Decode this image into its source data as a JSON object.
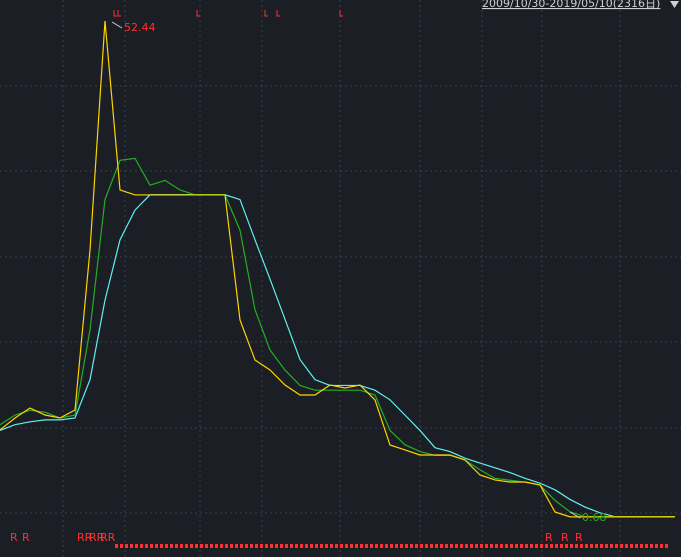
{
  "chart_data": {
    "type": "line",
    "title": "2009/10/30-2019/05/10(2316日)",
    "categories": [
      null,
      null,
      null,
      null,
      null,
      null,
      null,
      null,
      null,
      null,
      null,
      null,
      null,
      null,
      null,
      null,
      null,
      null,
      null,
      null,
      null,
      null,
      null,
      null,
      null,
      null,
      null,
      null,
      null,
      null,
      null,
      null,
      null,
      null,
      null,
      null,
      null,
      null,
      null,
      null,
      null,
      null,
      null,
      null,
      null,
      null
    ],
    "ylim": [
      -3.51,
      54.63
    ],
    "series": [
      {
        "color": "#5ef0f0",
        "values": [
          9.7,
          10.3,
          10.6,
          10.8,
          10.8,
          11.0,
          15.0,
          23.3,
          29.6,
          32.7,
          34.3,
          34.3,
          34.3,
          34.3,
          34.3,
          34.3,
          33.8,
          29.6,
          25.5,
          21.3,
          17.1,
          15.0,
          14.4,
          14.4,
          14.4,
          13.9,
          12.9,
          11.3,
          9.7,
          7.9,
          7.5,
          6.8,
          6.3,
          5.8,
          5.3,
          4.7,
          4.2,
          3.5,
          2.5,
          1.7,
          1.1,
          0.7,
          0.7,
          0.7,
          0.7,
          0.7
        ]
      },
      {
        "color": "#22b022",
        "values": [
          10.3,
          11.3,
          11.8,
          11.6,
          11.0,
          11.3,
          20.2,
          33.8,
          37.9,
          38.1,
          35.3,
          35.8,
          34.8,
          34.3,
          34.3,
          34.3,
          30.6,
          22.3,
          18.1,
          16.0,
          14.4,
          13.9,
          13.9,
          13.9,
          13.9,
          13.4,
          9.7,
          8.2,
          7.5,
          7.1,
          7.1,
          6.6,
          5.6,
          4.7,
          4.5,
          4.3,
          4.0,
          2.4,
          1.2,
          0.7,
          0.7,
          0.7,
          0.7,
          0.7,
          0.7,
          0.7
        ]
      },
      {
        "color": "#ffd400",
        "values": [
          9.75,
          11.0,
          12.04,
          11.31,
          11.0,
          11.83,
          28.54,
          52.44,
          34.8,
          34.28,
          34.28,
          34.28,
          34.28,
          34.28,
          34.28,
          34.28,
          21.23,
          17.05,
          16.01,
          14.44,
          13.4,
          13.4,
          14.44,
          14.13,
          14.44,
          12.88,
          8.18,
          7.66,
          7.14,
          7.14,
          7.14,
          6.62,
          5.05,
          4.53,
          4.32,
          4.32,
          4.01,
          1.19,
          0.68,
          0.68,
          0.68,
          0.68,
          0.68,
          0.68,
          0.68,
          0.68
        ]
      }
    ],
    "annotations": [
      {
        "text": "52.44",
        "color": "#ff3030"
      },
      {
        "text": "0.68",
        "color": "#22b022"
      }
    ],
    "markers": [
      "R",
      "R",
      "RR",
      "RR",
      "RR",
      "R",
      "R",
      "R"
    ]
  }
}
